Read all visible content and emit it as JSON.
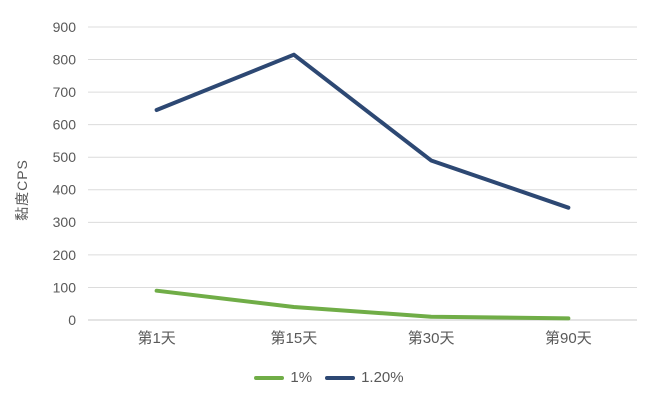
{
  "chart_data": {
    "type": "line",
    "title": "",
    "xlabel": "",
    "ylabel": "黏度CPS",
    "categories": [
      "第1天",
      "第15天",
      "第30天",
      "第90天"
    ],
    "series": [
      {
        "name": "1%",
        "color": "#70AD47",
        "values": [
          90,
          40,
          10,
          5
        ]
      },
      {
        "name": "1.20%",
        "color": "#2D4873",
        "values": [
          645,
          815,
          490,
          345
        ]
      }
    ],
    "ylim": [
      0,
      900
    ],
    "ytick_step": 100,
    "yticks": [
      0,
      100,
      200,
      300,
      400,
      500,
      600,
      700,
      800,
      900
    ],
    "grid": true,
    "legend_position": "bottom"
  },
  "colors": {
    "background": "#FFFFFF",
    "gridline": "#DCDCDC",
    "axis_line": "#C8C8C8",
    "text": "#595959"
  }
}
